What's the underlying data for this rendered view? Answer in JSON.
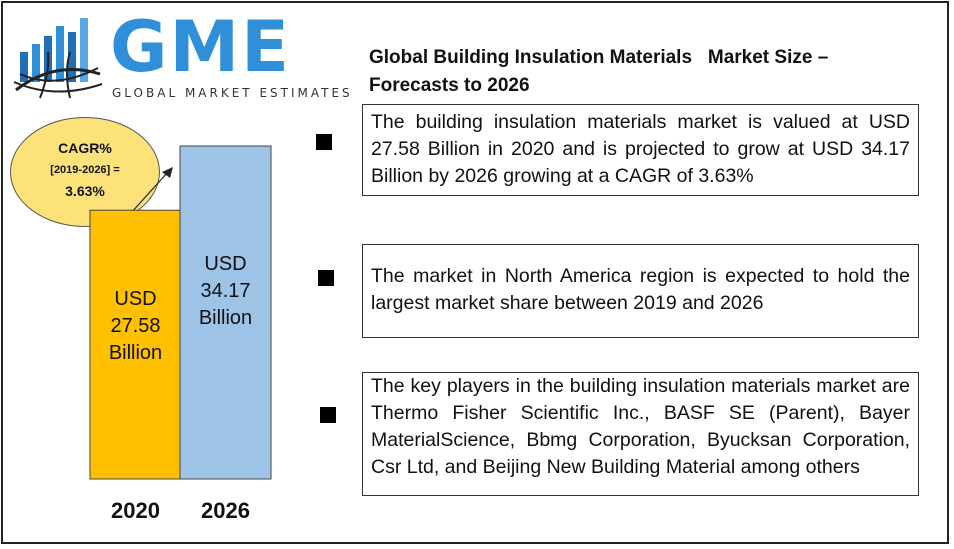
{
  "logo": {
    "wordmark": "GME",
    "tagline": "GLOBAL MARKET ESTIMATES"
  },
  "title": "Global Building Insulation Materials   Market Size –\nForecasts to 2026",
  "cagr": {
    "label": "CAGR%",
    "period": "[2019-2026] =",
    "value": "3.63%"
  },
  "boxes": [
    {
      "text": "The building insulation materials market is valued at USD 27.58 Billion in 2020 and is projected to grow at USD 34.17 Billion by 2026 growing at a CAGR of 3.63%"
    },
    {
      "text": "The market in North America region is expected to hold the largest market share between 2019 and 2026"
    },
    {
      "text": "The key players in the building insulation materials market are  Thermo Fisher Scientific Inc., BASF SE (Parent), Bayer MaterialScience, Bbmg Corporation, Byucksan Corporation, Csr Ltd, and Beijing New Building Material among others"
    }
  ],
  "colors": {
    "bar2020": "#ffc000",
    "bar2026": "#9dc3e6",
    "logo": "#2f8fd8",
    "bubble": "#fde27a"
  },
  "chart_data": {
    "type": "bar",
    "categories": [
      "2020",
      "2026"
    ],
    "values": [
      27.58,
      34.17
    ],
    "bar_labels": [
      [
        "USD",
        "27.58",
        "Billion"
      ],
      [
        "USD",
        "34.17",
        "Billion"
      ]
    ],
    "unit": "USD Billion",
    "ylim": [
      0,
      40
    ],
    "grid": false
  }
}
